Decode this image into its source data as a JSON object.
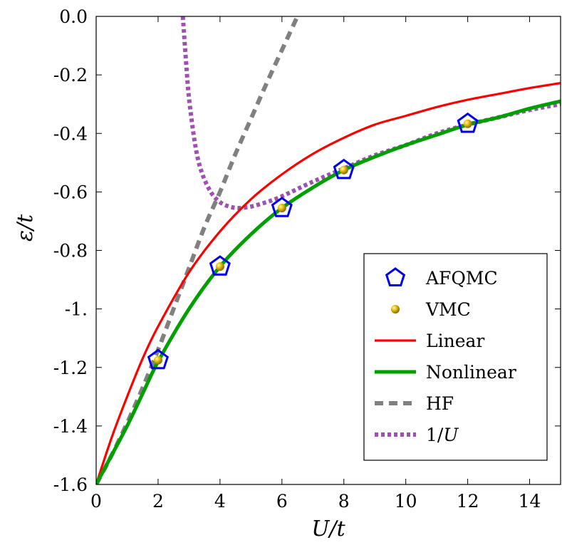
{
  "chart_data": {
    "type": "line",
    "xlabel": "U/t",
    "ylabel": "ε/t",
    "xlim": [
      0,
      15
    ],
    "ylim": [
      -1.6,
      0.0
    ],
    "x_ticks": [
      0,
      2,
      4,
      6,
      8,
      10,
      12,
      14
    ],
    "x_tick_labels": [
      "0",
      "2",
      "4",
      "6",
      "8",
      "10",
      "12",
      "14"
    ],
    "y_ticks": [
      0.0,
      -0.2,
      -0.4,
      -0.6,
      -0.8,
      -1.0,
      -1.2,
      -1.4,
      -1.6
    ],
    "y_tick_labels": [
      "0.0",
      "-0.2",
      "-0.4",
      "-0.6",
      "-0.8",
      "-1.",
      "-1.2",
      "-1.4",
      "-1.6"
    ],
    "legend_position": "bottom-right",
    "series": [
      {
        "name": "AFQMC",
        "style": "markers-pentagon",
        "color": "#0000ee",
        "x": [
          2,
          4,
          6,
          8,
          12
        ],
        "y": [
          -1.175,
          -0.855,
          -0.655,
          -0.525,
          -0.367
        ]
      },
      {
        "name": "VMC",
        "style": "markers-ball",
        "color": "#d9b000",
        "x": [
          2,
          4,
          6,
          8,
          12
        ],
        "y": [
          -1.175,
          -0.855,
          -0.655,
          -0.525,
          -0.367
        ]
      },
      {
        "name": "Linear",
        "style": "solid",
        "color": "#ff0000",
        "x": [
          0,
          0.5,
          1,
          1.5,
          2,
          3,
          4,
          5,
          6,
          7,
          8,
          9,
          10,
          11,
          12,
          13,
          14,
          15
        ],
        "y": [
          -1.6,
          -1.44,
          -1.3,
          -1.17,
          -1.06,
          -0.875,
          -0.735,
          -0.625,
          -0.54,
          -0.47,
          -0.415,
          -0.37,
          -0.34,
          -0.31,
          -0.285,
          -0.265,
          -0.245,
          -0.228
        ]
      },
      {
        "name": "Nonlinear",
        "style": "solid",
        "color": "#00a000",
        "x": [
          0,
          0.5,
          1,
          1.5,
          2,
          3,
          4,
          5,
          6,
          7,
          8,
          9,
          10,
          11,
          12,
          13,
          14,
          15
        ],
        "y": [
          -1.6,
          -1.5,
          -1.4,
          -1.29,
          -1.18,
          -1.0,
          -0.855,
          -0.745,
          -0.655,
          -0.585,
          -0.525,
          -0.48,
          -0.44,
          -0.405,
          -0.37,
          -0.345,
          -0.315,
          -0.29
        ]
      },
      {
        "name": "HF",
        "style": "dashed",
        "color": "#808080",
        "x": [
          0,
          0.5,
          1,
          1.5,
          2,
          2.5,
          3,
          3.5,
          4,
          4.5,
          5,
          5.5,
          6,
          6.5
        ],
        "y": [
          -1.6,
          -1.5,
          -1.39,
          -1.27,
          -1.14,
          -1.0,
          -0.86,
          -0.72,
          -0.6,
          -0.47,
          -0.35,
          -0.23,
          -0.115,
          0.0
        ]
      },
      {
        "name": "1/U",
        "style": "dotted",
        "color": "#a050b0",
        "x": [
          2.8,
          2.9,
          3.0,
          3.2,
          3.4,
          3.7,
          4.0,
          4.3,
          4.6,
          5.0,
          5.5,
          6,
          7,
          8,
          9,
          10,
          11,
          12,
          13,
          14,
          15
        ],
        "y": [
          0.0,
          -0.15,
          -0.28,
          -0.44,
          -0.53,
          -0.6,
          -0.635,
          -0.65,
          -0.655,
          -0.65,
          -0.635,
          -0.615,
          -0.565,
          -0.52,
          -0.475,
          -0.44,
          -0.4,
          -0.37,
          -0.345,
          -0.32,
          -0.3
        ]
      }
    ]
  }
}
